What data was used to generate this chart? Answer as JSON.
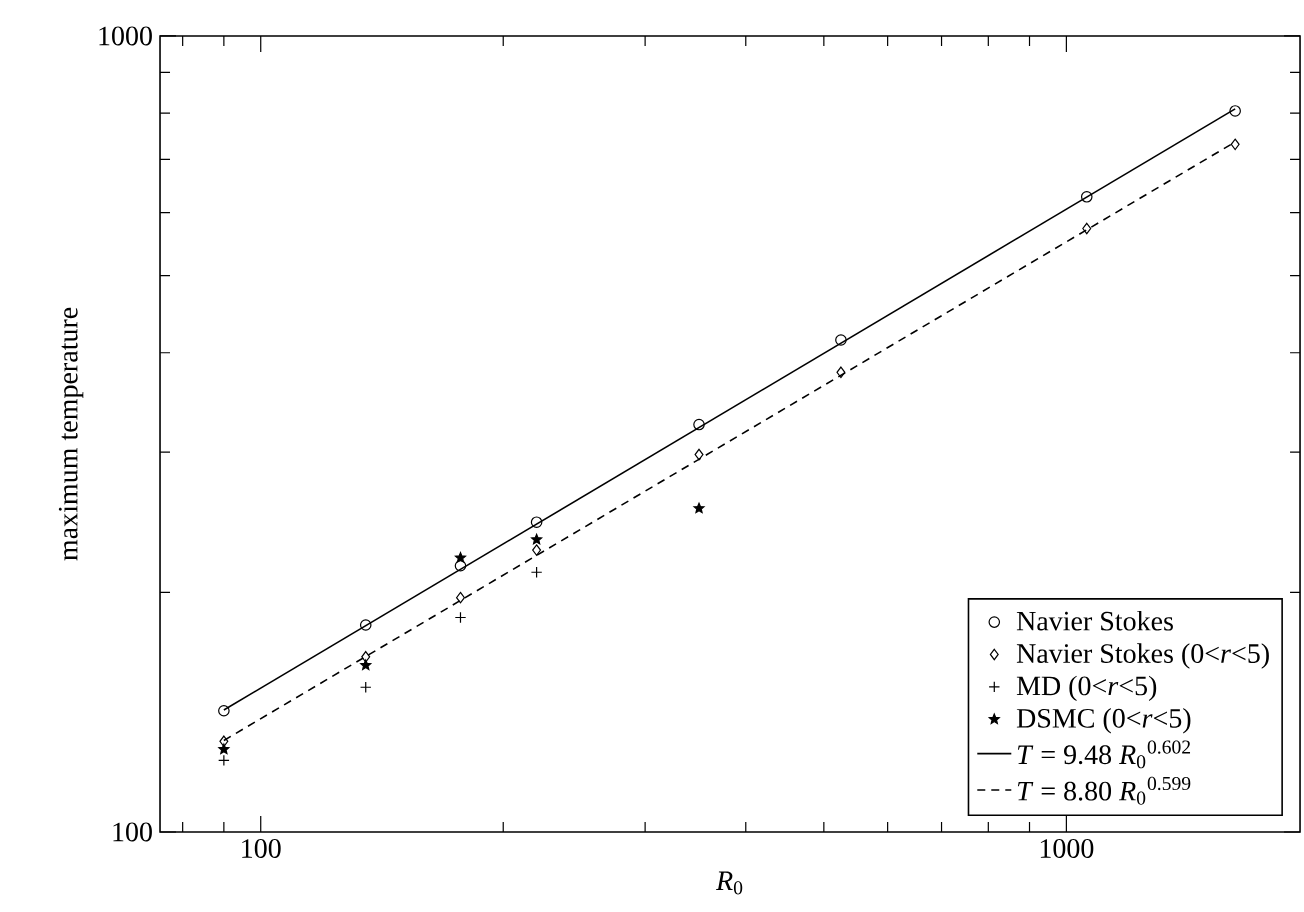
{
  "chart_data": {
    "type": "scatter",
    "xlabel": "*R*$_{0}$",
    "ylabel": "maximum temperature",
    "log": "xy",
    "xlim": [
      75,
      1950
    ],
    "ylim": [
      100,
      1000
    ],
    "xticks": [
      100,
      1000
    ],
    "yticks": [
      100,
      1000
    ],
    "grid": false,
    "legend": "bottom right",
    "series": [
      {
        "name": "Navier Stokes",
        "marker": "circle",
        "color": "#000000",
        "x": [
          90,
          135,
          177,
          220,
          350,
          525,
          1060,
          1620
        ],
        "values": [
          142,
          182,
          216,
          245,
          325,
          415,
          628,
          805
        ]
      },
      {
        "name": "Navier Stokes (0<*r*<5)",
        "marker": "diamond",
        "color": "#000000",
        "x": [
          90,
          135,
          177,
          220,
          350,
          525,
          1060,
          1620
        ],
        "values": [
          130,
          166,
          197,
          226,
          298,
          378,
          573,
          731
        ]
      },
      {
        "name": "MD (0<*r*<5)",
        "marker": "cross",
        "color": "#000000",
        "x": [
          90,
          135,
          177,
          220
        ],
        "values": [
          123,
          152,
          186,
          212
        ]
      },
      {
        "name": "DSMC (0<*r*<5)",
        "marker": "star",
        "color": "#000000",
        "x": [
          90,
          135,
          177,
          220,
          350
        ],
        "values": [
          127,
          162,
          221,
          233,
          255
        ]
      },
      {
        "name": "*T* = 9.48 *R*$_{0}$$^{0.602}$",
        "type": "line",
        "line_style": "solid",
        "color": "#000000",
        "x": [
          90,
          1620
        ],
        "values": [
          142.3,
          810
        ]
      },
      {
        "name": "*T* = 8.80 *R*$_{0}$$^{0.599}$",
        "type": "line",
        "line_style": "dashed",
        "color": "#000000",
        "x": [
          90,
          1620
        ],
        "values": [
          130.3,
          736
        ]
      }
    ]
  }
}
